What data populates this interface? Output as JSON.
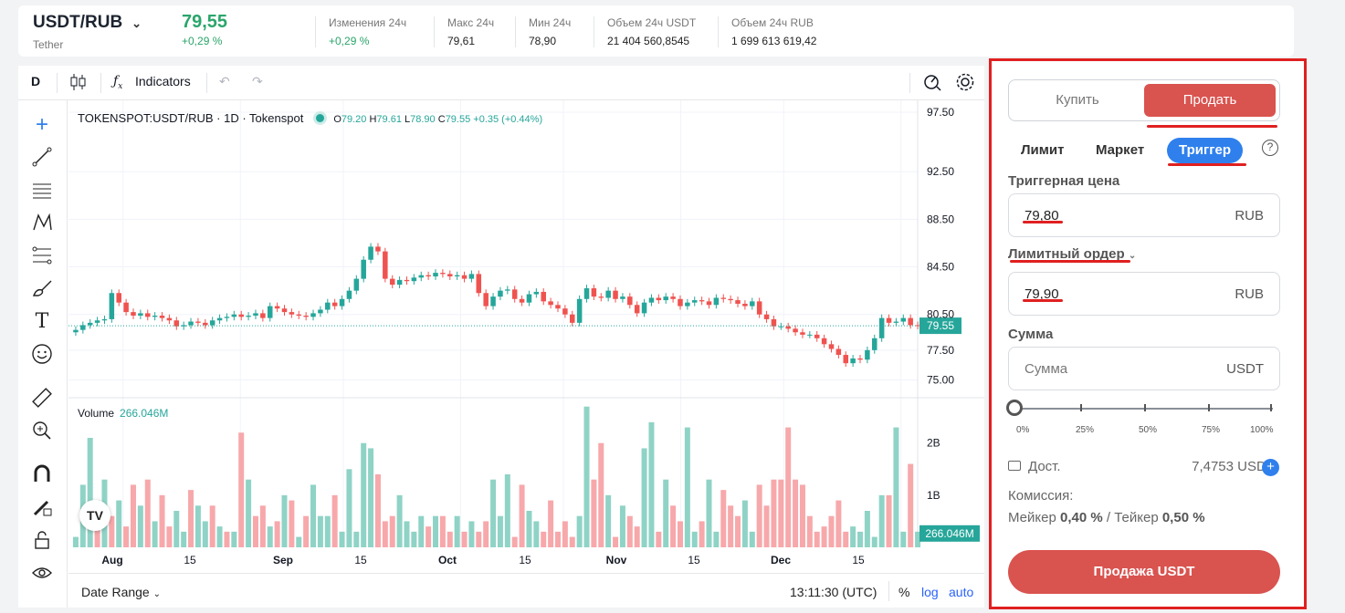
{
  "header": {
    "pair": "USDT/RUB",
    "asset": "Tether",
    "price": "79,55",
    "change_pct": "+0,29 %",
    "stats": [
      {
        "label": "Изменения 24ч",
        "value": "+0,29 %",
        "positive": true
      },
      {
        "label": "Макс 24ч",
        "value": "79,61"
      },
      {
        "label": "Мин 24ч",
        "value": "78,90"
      },
      {
        "label": "Объем 24ч USDT",
        "value": "21 404 560,8545"
      },
      {
        "label": "Объем 24ч RUB",
        "value": "1 699 613 619,42"
      }
    ]
  },
  "toolbar": {
    "interval": "D",
    "indicators": "Indicators"
  },
  "chart_legend": {
    "symbol": "TOKENSPOT:USDT/RUB · 1D · Tokenspot",
    "o_label": "O",
    "o": "79.20",
    "h_label": "H",
    "h": "79.61",
    "l_label": "L",
    "l": "78.90",
    "c_label": "C",
    "c": "79.55",
    "change": "+0.35 (+0.44%)",
    "volume_label": "Volume",
    "volume_value": "266.046M"
  },
  "bottom": {
    "date_range": "Date Range",
    "time": "13:11:30 (UTC)",
    "pct": "%",
    "log": "log",
    "auto": "auto"
  },
  "chart_data": [
    {
      "type": "candlestick",
      "title": "TOKENSPOT:USDT/RUB · 1D · Tokenspot",
      "y_ticks": [
        "97.50",
        "92.50",
        "88.50",
        "84.50",
        "80.50",
        "77.50",
        "75.00"
      ],
      "x_ticks": [
        "Aug",
        "15",
        "Sep",
        "15",
        "Oct",
        "15",
        "Nov",
        "15",
        "Dec",
        "15"
      ],
      "last_price": "79.55",
      "ylim": [
        73.5,
        98.5
      ],
      "closes": [
        79.2,
        79.6,
        79.8,
        80.0,
        80.1,
        82.3,
        81.5,
        80.7,
        80.4,
        80.6,
        80.3,
        80.4,
        80.2,
        80.0,
        79.5,
        79.6,
        79.9,
        79.8,
        79.6,
        80.0,
        80.2,
        80.3,
        80.5,
        80.3,
        80.4,
        80.6,
        80.2,
        81.2,
        81.0,
        80.7,
        80.5,
        80.4,
        80.3,
        80.6,
        80.9,
        81.5,
        81.2,
        81.8,
        82.5,
        83.5,
        85.1,
        86.2,
        85.8,
        83.5,
        83.0,
        83.4,
        83.3,
        83.6,
        83.8,
        83.7,
        84.0,
        83.9,
        83.7,
        83.8,
        83.5,
        83.9,
        82.3,
        81.2,
        82.0,
        82.5,
        82.6,
        81.8,
        81.5,
        82.2,
        82.4,
        81.6,
        81.3,
        81.0,
        80.5,
        79.8,
        81.8,
        82.7,
        82.0,
        81.9,
        82.5,
        81.8,
        82.0,
        81.3,
        80.6,
        81.5,
        81.9,
        81.7,
        82.0,
        81.8,
        81.2,
        81.5,
        81.7,
        81.6,
        81.3,
        81.9,
        81.8,
        81.7,
        81.4,
        81.2,
        81.6,
        80.5,
        80.1,
        79.5,
        79.5,
        79.3,
        79.0,
        78.8,
        78.8,
        78.5,
        78.0,
        77.6,
        77.1,
        76.4,
        76.8,
        76.7,
        77.5,
        78.5,
        80.2,
        79.8,
        79.9,
        80.2,
        79.6,
        79.55
      ],
      "candles_per_x_tick": 15.3
    },
    {
      "type": "bar",
      "title": "Volume",
      "last_value": "266.046M",
      "y_ticks": [
        "2B",
        "1B"
      ],
      "ylim": [
        0,
        2.8
      ],
      "values": [
        0.2,
        1.2,
        2.1,
        0.9,
        1.3,
        0.6,
        0.9,
        0.4,
        1.2,
        0.8,
        1.3,
        0.5,
        1.0,
        0.4,
        0.7,
        0.3,
        1.1,
        0.8,
        0.5,
        0.8,
        0.4,
        0.3,
        0.3,
        2.2,
        1.3,
        0.6,
        0.8,
        0.4,
        0.5,
        1.0,
        0.9,
        0.2,
        0.6,
        1.2,
        0.6,
        0.6,
        1.0,
        0.3,
        1.5,
        0.3,
        2.0,
        1.9,
        1.4,
        0.5,
        0.6,
        1.0,
        0.5,
        0.3,
        0.6,
        0.4,
        0.6,
        0.6,
        0.3,
        0.6,
        0.3,
        0.5,
        0.3,
        0.5,
        1.3,
        0.6,
        1.4,
        0.2,
        1.2,
        0.7,
        0.5,
        0.3,
        0.9,
        0.3,
        0.5,
        0.2,
        0.6,
        2.7,
        1.3,
        2.0,
        1.0,
        0.2,
        0.8,
        0.6,
        0.4,
        1.9,
        2.4,
        0.3,
        1.3,
        0.8,
        0.5,
        2.3,
        0.3,
        0.5,
        1.3,
        0.3,
        1.1,
        0.8,
        0.6,
        0.9,
        0.3,
        1.2,
        0.8,
        1.3,
        1.3,
        2.3,
        1.3,
        1.2,
        0.6,
        0.3,
        0.4,
        0.6,
        0.9,
        0.3,
        0.4,
        0.3,
        0.7,
        0.2,
        1.0,
        1.0,
        2.3,
        0.3,
        1.6,
        0.3
      ],
      "up": [
        1,
        1,
        1,
        0,
        1,
        0,
        1,
        0,
        0,
        1,
        0,
        1,
        0,
        0,
        1,
        1,
        0,
        1,
        1,
        0,
        1,
        0,
        1,
        0,
        1,
        0,
        0,
        1,
        0,
        1,
        0,
        1,
        0,
        1,
        1,
        1,
        0,
        1,
        1,
        1,
        1,
        1,
        0,
        0,
        0,
        1,
        1,
        1,
        1,
        0,
        1,
        0,
        0,
        1,
        0,
        1,
        0,
        0,
        1,
        1,
        1,
        0,
        0,
        1,
        1,
        0,
        0,
        0,
        0,
        0,
        1,
        1,
        0,
        0,
        1,
        0,
        1,
        0,
        0,
        1,
        1,
        0,
        1,
        0,
        0,
        1,
        1,
        0,
        1,
        1,
        0,
        0,
        0,
        1,
        1,
        0,
        0,
        0,
        0,
        0,
        0,
        0,
        0,
        0,
        0,
        0,
        0,
        0,
        1,
        1,
        1,
        1,
        1,
        0,
        1,
        1,
        0,
        1
      ]
    }
  ],
  "panel": {
    "buy": "Купить",
    "sell": "Продать",
    "order_types": [
      "Лимит",
      "Маркет",
      "Триггер"
    ],
    "help": "?",
    "trigger_label": "Триггерная цена",
    "trigger_value": "79,80",
    "trigger_unit": "RUB",
    "limit_label": "Лимитный ордер",
    "limit_value": "79,90",
    "limit_unit": "RUB",
    "amount_label": "Сумма",
    "amount_placeholder": "Сумма",
    "amount_unit": "USDT",
    "slider_pcts": [
      "0%",
      "25%",
      "50%",
      "75%",
      "100%"
    ],
    "slider_value": 0,
    "avail_label": "Дост.",
    "avail_value": "7,4753 USDT",
    "fee_label": "Комиссия:",
    "maker_label": "Мейкер",
    "maker_value": "0,40 %",
    "taker_label": "Тейкер",
    "taker_value": "0,50 %",
    "submit": "Продажа USDT"
  },
  "colors": {
    "up": "#26a69a",
    "down": "#ef5350",
    "accent": "#2f80ed",
    "sell": "#d9534f",
    "highlight": "#e02020"
  }
}
